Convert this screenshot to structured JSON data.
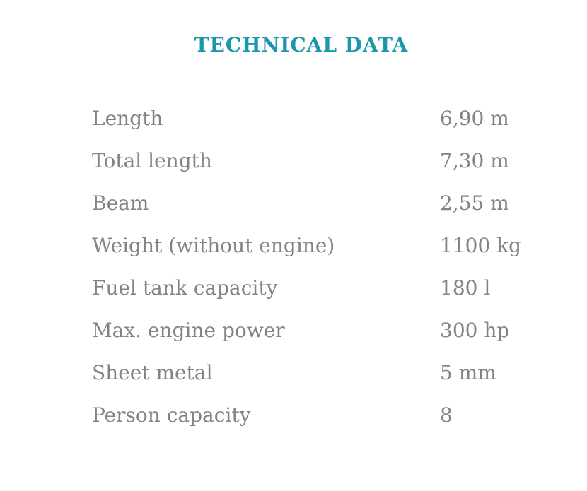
{
  "page": {
    "background_color": "#ffffff",
    "title_color": "#1b97ab",
    "text_color": "#808389"
  },
  "section": {
    "title": "TECHNICAL DATA"
  },
  "table": {
    "rows": [
      {
        "label": "Length",
        "value": "6,90 m"
      },
      {
        "label": "Total length",
        "value": "7,30 m"
      },
      {
        "label": "Beam",
        "value": "2,55 m"
      },
      {
        "label": "Weight (without engine)",
        "value": "1100 kg"
      },
      {
        "label": "Fuel tank capacity",
        "value": "180 l"
      },
      {
        "label": "Max. engine power",
        "value": "300 hp"
      },
      {
        "label": "Sheet metal",
        "value": "5 mm"
      },
      {
        "label": "Person capacity",
        "value": "8"
      }
    ]
  }
}
